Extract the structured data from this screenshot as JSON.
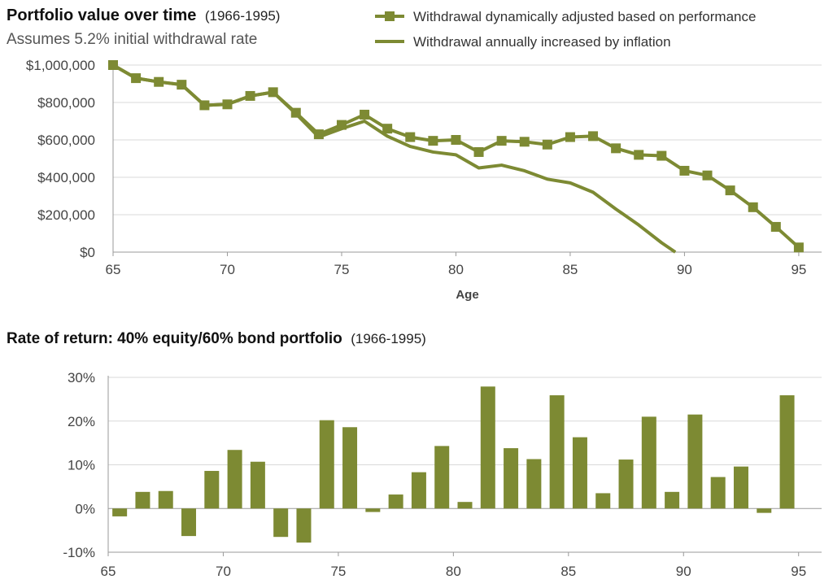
{
  "colors": {
    "series": "#7d8a33",
    "grid": "#d9d9d9",
    "axis": "#9a9a9a"
  },
  "chart_data": [
    {
      "type": "line",
      "title": "Portfolio value over time",
      "title_suffix": "(1966-1995)",
      "subtitle": "Assumes 5.2% initial withdrawal rate",
      "xlabel": "Age",
      "ylabel": "",
      "xlim": [
        65,
        96
      ],
      "ylim": [
        0,
        1000000
      ],
      "x_ticks": [
        65,
        70,
        75,
        80,
        85,
        90,
        95
      ],
      "y_ticks": [
        0,
        200000,
        400000,
        600000,
        800000,
        1000000
      ],
      "y_tick_labels": [
        "$0",
        "$200,000",
        "$400,000",
        "$600,000",
        "$800,000",
        "$1,000,000"
      ],
      "grid": true,
      "legend_position": "top-right",
      "series": [
        {
          "name": "Withdrawal dynamically adjusted based on performance",
          "marker": "square",
          "x": [
            65,
            66,
            67,
            68,
            69,
            70,
            71,
            72,
            73,
            74,
            75,
            76,
            77,
            78,
            79,
            80,
            81,
            82,
            83,
            84,
            85,
            86,
            87,
            88,
            89,
            90,
            91,
            92,
            93,
            94,
            95
          ],
          "values": [
            1000000,
            930000,
            910000,
            895000,
            785000,
            790000,
            835000,
            855000,
            745000,
            630000,
            680000,
            735000,
            660000,
            615000,
            595000,
            600000,
            535000,
            595000,
            590000,
            575000,
            615000,
            620000,
            555000,
            520000,
            515000,
            435000,
            410000,
            330000,
            240000,
            135000,
            25000
          ]
        },
        {
          "name": "Withdrawal annually increased by inflation",
          "marker": "none",
          "x": [
            65,
            66,
            67,
            68,
            69,
            70,
            71,
            72,
            73,
            74,
            75,
            76,
            77,
            78,
            79,
            80,
            81,
            82,
            83,
            84,
            85,
            86,
            87,
            88,
            89,
            89.6
          ],
          "values": [
            1000000,
            930000,
            910000,
            895000,
            785000,
            790000,
            835000,
            855000,
            740000,
            615000,
            660000,
            700000,
            620000,
            565000,
            535000,
            520000,
            450000,
            465000,
            435000,
            390000,
            370000,
            320000,
            230000,
            145000,
            50000,
            0
          ]
        }
      ]
    },
    {
      "type": "bar",
      "title": "Rate of return: 40% equity/60% bond portfolio",
      "title_suffix": "(1966-1995)",
      "xlabel": "",
      "ylabel": "",
      "xlim": [
        65,
        96
      ],
      "ylim": [
        -10,
        30
      ],
      "x_ticks": [
        65,
        70,
        75,
        80,
        85,
        90,
        95
      ],
      "y_ticks": [
        -10,
        0,
        10,
        20,
        30
      ],
      "y_tick_labels": [
        "-10%",
        "0%",
        "10%",
        "20%",
        "30%"
      ],
      "grid": true,
      "x": [
        65.5,
        66.5,
        67.5,
        68.5,
        69.5,
        70.5,
        71.5,
        72.5,
        73.5,
        74.5,
        75.5,
        76.5,
        77.5,
        78.5,
        79.5,
        80.5,
        81.5,
        82.5,
        83.5,
        84.5,
        85.5,
        86.5,
        87.5,
        88.5,
        89.5,
        90.5,
        91.5,
        92.5,
        93.5,
        94.5
      ],
      "values": [
        -1.8,
        3.8,
        4.0,
        -6.3,
        8.6,
        13.4,
        10.7,
        -6.5,
        -7.8,
        20.2,
        18.6,
        -0.8,
        3.2,
        8.3,
        14.3,
        1.5,
        27.9,
        13.8,
        11.3,
        25.9,
        16.3,
        3.5,
        11.2,
        21.0,
        3.8,
        21.5,
        7.2,
        9.6,
        -1.0,
        25.9
      ]
    }
  ]
}
